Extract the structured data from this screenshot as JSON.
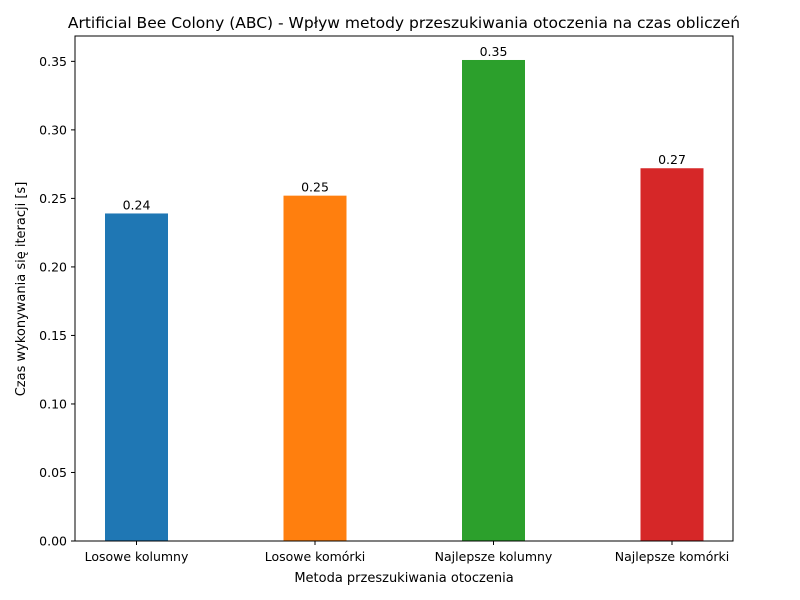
{
  "chart_data": {
    "type": "bar",
    "title": "Artificial Bee Colony (ABC) - Wpływ metody przeszukiwania otoczenia na czas obliczeń",
    "xlabel": "Metoda przeszukiwania otoczenia",
    "ylabel": "Czas wykonywania się iteracji [s]",
    "categories": [
      "Losowe kolumny",
      "Losowe komórki",
      "Najlepsze kolumny",
      "Najlepsze komórki"
    ],
    "values": [
      0.239,
      0.252,
      0.351,
      0.272
    ],
    "value_labels": [
      "0.24",
      "0.25",
      "0.35",
      "0.27"
    ],
    "colors": [
      "#1f77b4",
      "#ff7f0e",
      "#2ca02c",
      "#d62728"
    ],
    "ylim": [
      0,
      0.3685
    ],
    "yticks": [
      0.0,
      0.05,
      0.1,
      0.15,
      0.2,
      0.25,
      0.3,
      0.35
    ],
    "ytick_labels": [
      "0.00",
      "0.05",
      "0.10",
      "0.15",
      "0.20",
      "0.25",
      "0.30",
      "0.35"
    ],
    "grid": false,
    "legend": "none"
  }
}
